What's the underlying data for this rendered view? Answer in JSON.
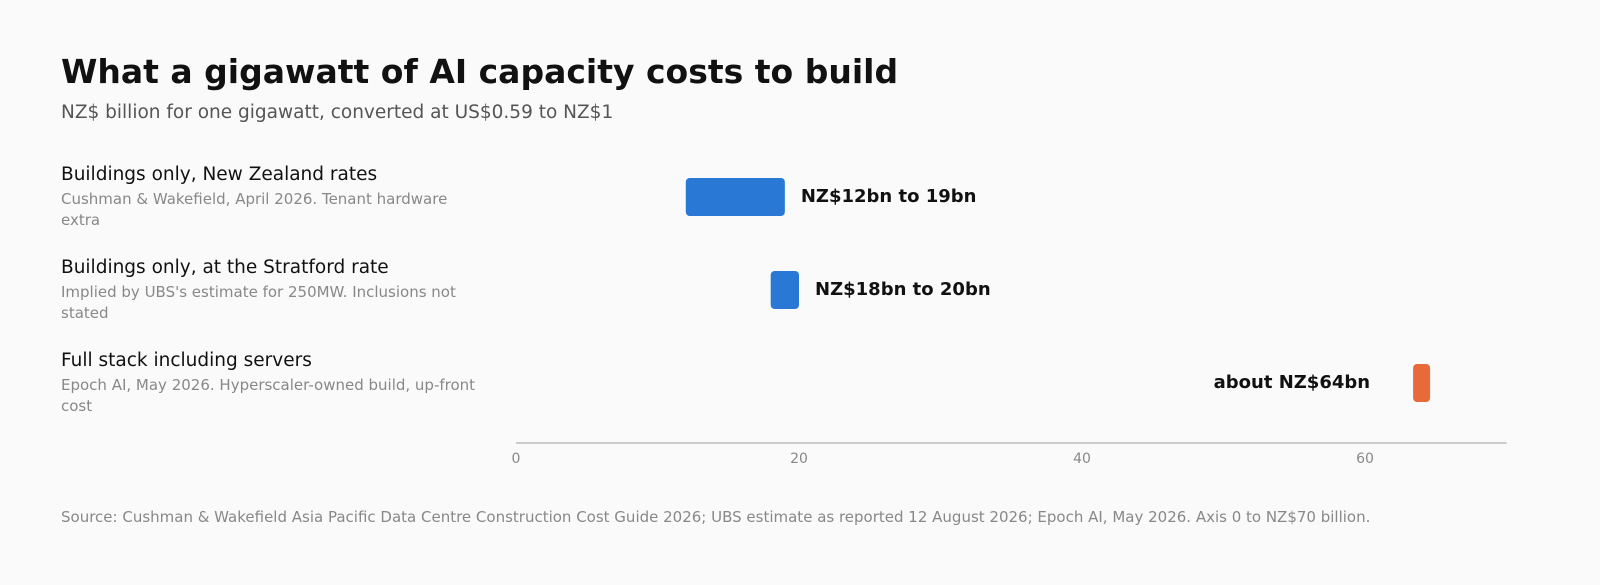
{
  "chart_data": {
    "type": "range",
    "title": "What a gigawatt of AI capacity costs to build",
    "subtitle": "NZ$ billion for one gigawatt, converted at US$0.59 to NZ$1",
    "categories": [
      "Buildings only, New Zealand rates",
      "Buildings only, at the Stratford rate",
      "Full stack including servers"
    ],
    "notes": [
      "Cushman & Wakefield, April 2026. Tenant hardware extra",
      "Implied by UBS's estimate for 250MW. Inclusions not stated",
      "Epoch AI, May 2026. Hyperscaler-owned build, up-front cost"
    ],
    "low": [
      12,
      18,
      64
    ],
    "high": [
      19,
      20,
      64
    ],
    "value_labels": [
      "NZ$12bn to 19bn",
      "NZ$18bn to 20bn",
      "about NZ$64bn"
    ],
    "colors": [
      "#2a78d6",
      "#2a78d6",
      "#e8693a"
    ],
    "xlim": [
      0,
      70
    ],
    "xticks": [
      0,
      20,
      40,
      60
    ],
    "source": "Source: Cushman & Wakefield Asia Pacific Data Centre Construction Cost Guide 2026; UBS estimate as reported 12 August 2026; Epoch AI, May 2026. Axis 0 to NZ$70 billion."
  }
}
